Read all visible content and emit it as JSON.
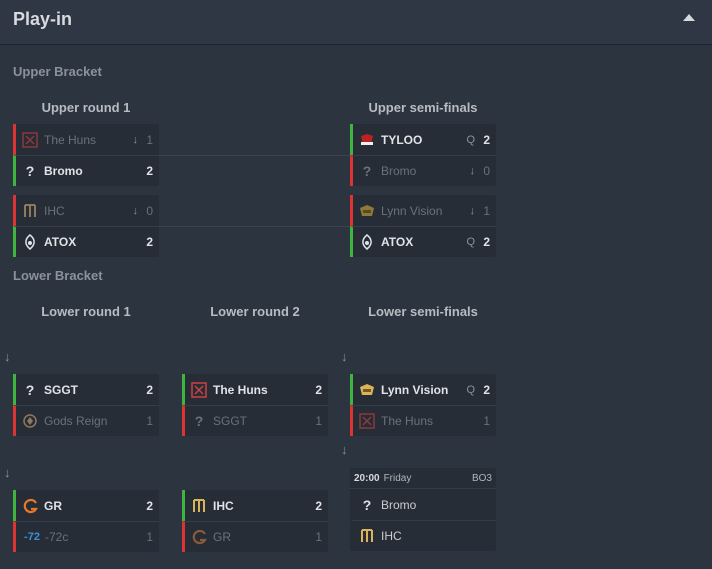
{
  "title": "Play-in",
  "sections": {
    "upper": "Upper Bracket",
    "lower": "Lower Bracket"
  },
  "rounds": {
    "upper_r1": "Upper round 1",
    "upper_semi": "Upper semi-finals",
    "lower_r1": "Lower round 1",
    "lower_r2": "Lower round 2",
    "lower_semi": "Lower semi-finals"
  },
  "matches": {
    "u1a": {
      "t1": {
        "name": "The Huns",
        "marker": "↓",
        "score": "1"
      },
      "t2": {
        "name": "Bromo",
        "score": "2"
      }
    },
    "u1b": {
      "t1": {
        "name": "IHC",
        "marker": "↓",
        "score": "0"
      },
      "t2": {
        "name": "ATOX",
        "score": "2"
      }
    },
    "usa": {
      "t1": {
        "name": "TYLOO",
        "marker": "Q",
        "score": "2"
      },
      "t2": {
        "name": "Bromo",
        "marker": "↓",
        "score": "0"
      }
    },
    "usb": {
      "t1": {
        "name": "Lynn Vision",
        "marker": "↓",
        "score": "1"
      },
      "t2": {
        "name": "ATOX",
        "marker": "Q",
        "score": "2"
      }
    },
    "l1a": {
      "t1": {
        "name": "SGGT",
        "score": "2"
      },
      "t2": {
        "name": "Gods Reign",
        "score": "1"
      }
    },
    "l1b": {
      "t1": {
        "name": "GR",
        "score": "2"
      },
      "t2": {
        "name": "-72c",
        "logo_text": "-72",
        "score": "1"
      }
    },
    "l2a": {
      "t1": {
        "name": "The Huns",
        "score": "2"
      },
      "t2": {
        "name": "SGGT",
        "score": "1"
      }
    },
    "l2b": {
      "t1": {
        "name": "IHC",
        "score": "2"
      },
      "t2": {
        "name": "GR",
        "score": "1"
      }
    },
    "lsa": {
      "t1": {
        "name": "Lynn Vision",
        "marker": "Q",
        "score": "2"
      },
      "t2": {
        "name": "The Huns",
        "score": "1"
      }
    },
    "lsb": {
      "time": "20:00",
      "day": "Friday",
      "format": "BO3",
      "t1": {
        "name": "Bromo"
      },
      "t2": {
        "name": "IHC"
      }
    }
  },
  "arrow_glyph": "↓",
  "colors": {
    "win": "#3fb43f",
    "lose": "#dd3333",
    "background": "#2c3440"
  }
}
